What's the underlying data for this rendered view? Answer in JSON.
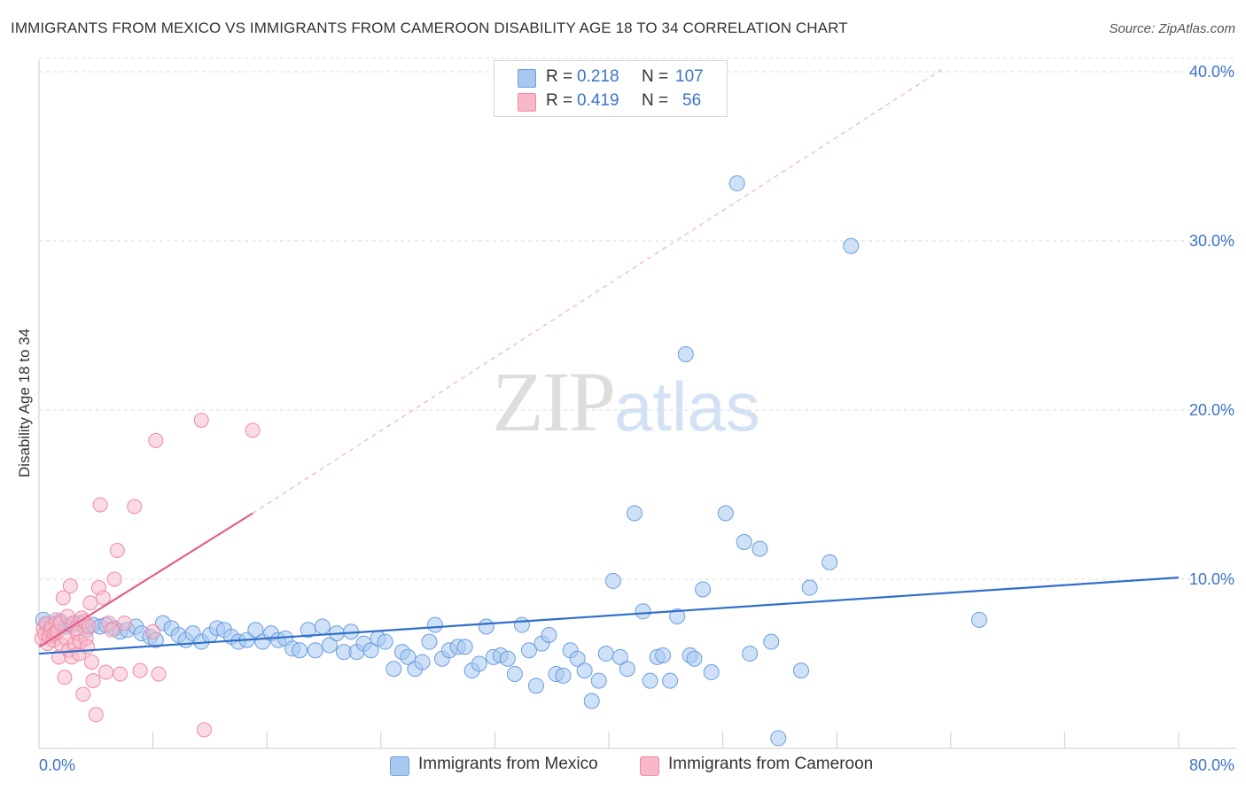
{
  "header": {
    "title": "IMMIGRANTS FROM MEXICO VS IMMIGRANTS FROM CAMEROON DISABILITY AGE 18 TO 34 CORRELATION CHART",
    "source": "Source: ZipAtlas.com"
  },
  "watermark": {
    "zip": "ZIP",
    "atlas": "atlas"
  },
  "legend": {
    "rows": [
      {
        "r_label": "R =",
        "r_value": "0.218",
        "n_label": "N =",
        "n_value": "107",
        "color": "#a8c8f0"
      },
      {
        "r_label": "R =",
        "r_value": "0.419",
        "n_label": "N =",
        "n_value": "56",
        "color": "#f8b8c8"
      }
    ]
  },
  "colors": {
    "mexico_fill": "#a8c8f0",
    "mexico_stroke": "#6a9ee0",
    "mexico_line": "#2f6fcc",
    "cameroon_fill": "#f8b8c8",
    "cameroon_stroke": "#ee8aa6",
    "cameroon_line": "#e0608a",
    "tick_label": "#3b73c8",
    "grid": "#dddddd"
  },
  "chart_data": {
    "type": "scatter",
    "title": "IMMIGRANTS FROM MEXICO VS IMMIGRANTS FROM CAMEROON DISABILITY AGE 18 TO 34 CORRELATION CHART",
    "xlabel": "",
    "ylabel": "Disability Age 18 to 34",
    "xlim": [
      0,
      80
    ],
    "ylim": [
      0,
      42
    ],
    "x_tick_labels": [
      "0.0%",
      "80.0%"
    ],
    "y_ticks": [
      10,
      20,
      30,
      40
    ],
    "y_tick_labels": [
      "10.0%",
      "20.0%",
      "30.0%",
      "40.0%"
    ],
    "grid": true,
    "legend_position": "top-center",
    "series": [
      {
        "name": "Immigrants from Mexico",
        "trend": {
          "x": [
            0,
            80
          ],
          "y": [
            5.6,
            10.1
          ]
        },
        "points": [
          [
            0.3,
            7.6
          ],
          [
            0.6,
            7.3
          ],
          [
            0.9,
            7.0
          ],
          [
            1.2,
            7.4
          ],
          [
            1.5,
            7.5
          ],
          [
            1.9,
            7.2
          ],
          [
            2.3,
            7.3
          ],
          [
            2.8,
            7.4
          ],
          [
            3.3,
            7.0
          ],
          [
            3.8,
            7.3
          ],
          [
            4.3,
            7.2
          ],
          [
            4.7,
            7.3
          ],
          [
            5.3,
            7.1
          ],
          [
            5.7,
            6.9
          ],
          [
            6.2,
            7.0
          ],
          [
            6.8,
            7.2
          ],
          [
            7.2,
            6.8
          ],
          [
            7.8,
            6.6
          ],
          [
            8.2,
            6.4
          ],
          [
            8.7,
            7.4
          ],
          [
            9.3,
            7.1
          ],
          [
            9.8,
            6.7
          ],
          [
            10.3,
            6.4
          ],
          [
            10.8,
            6.8
          ],
          [
            11.4,
            6.3
          ],
          [
            12.0,
            6.7
          ],
          [
            12.5,
            7.1
          ],
          [
            13.0,
            7.0
          ],
          [
            13.5,
            6.6
          ],
          [
            14.0,
            6.3
          ],
          [
            14.6,
            6.4
          ],
          [
            15.2,
            7.0
          ],
          [
            15.7,
            6.3
          ],
          [
            16.3,
            6.8
          ],
          [
            16.8,
            6.4
          ],
          [
            17.3,
            6.5
          ],
          [
            17.8,
            5.9
          ],
          [
            18.3,
            5.8
          ],
          [
            18.9,
            7.0
          ],
          [
            19.4,
            5.8
          ],
          [
            19.9,
            7.2
          ],
          [
            20.4,
            6.1
          ],
          [
            20.9,
            6.8
          ],
          [
            21.4,
            5.7
          ],
          [
            21.9,
            6.9
          ],
          [
            22.3,
            5.7
          ],
          [
            22.8,
            6.2
          ],
          [
            23.3,
            5.8
          ],
          [
            23.8,
            6.5
          ],
          [
            24.3,
            6.3
          ],
          [
            24.9,
            4.7
          ],
          [
            25.5,
            5.7
          ],
          [
            25.9,
            5.4
          ],
          [
            26.4,
            4.7
          ],
          [
            26.9,
            5.1
          ],
          [
            27.4,
            6.3
          ],
          [
            27.8,
            7.3
          ],
          [
            28.3,
            5.3
          ],
          [
            28.8,
            5.8
          ],
          [
            29.4,
            6.0
          ],
          [
            29.9,
            6.0
          ],
          [
            30.4,
            4.6
          ],
          [
            30.9,
            5.0
          ],
          [
            31.4,
            7.2
          ],
          [
            31.9,
            5.4
          ],
          [
            32.4,
            5.5
          ],
          [
            32.9,
            5.3
          ],
          [
            33.4,
            4.4
          ],
          [
            33.9,
            7.3
          ],
          [
            34.4,
            5.8
          ],
          [
            34.9,
            3.7
          ],
          [
            35.3,
            6.2
          ],
          [
            35.8,
            6.7
          ],
          [
            36.3,
            4.4
          ],
          [
            36.8,
            4.3
          ],
          [
            37.3,
            5.8
          ],
          [
            37.8,
            5.3
          ],
          [
            38.3,
            4.6
          ],
          [
            38.8,
            2.8
          ],
          [
            39.3,
            4.0
          ],
          [
            39.8,
            5.6
          ],
          [
            40.3,
            9.9
          ],
          [
            40.8,
            5.4
          ],
          [
            41.3,
            4.7
          ],
          [
            41.8,
            13.9
          ],
          [
            42.4,
            8.1
          ],
          [
            42.9,
            4.0
          ],
          [
            43.4,
            5.4
          ],
          [
            43.8,
            5.5
          ],
          [
            44.3,
            4.0
          ],
          [
            44.8,
            7.8
          ],
          [
            45.4,
            23.3
          ],
          [
            45.7,
            5.5
          ],
          [
            46.0,
            5.3
          ],
          [
            46.6,
            9.4
          ],
          [
            47.2,
            4.5
          ],
          [
            48.2,
            13.9
          ],
          [
            49.0,
            33.4
          ],
          [
            49.5,
            12.2
          ],
          [
            49.9,
            5.6
          ],
          [
            50.6,
            11.8
          ],
          [
            51.4,
            6.3
          ],
          [
            51.9,
            0.6
          ],
          [
            53.5,
            4.6
          ],
          [
            54.1,
            9.5
          ],
          [
            55.5,
            11.0
          ],
          [
            57.0,
            29.7
          ],
          [
            66.0,
            7.6
          ]
        ]
      },
      {
        "name": "Immigrants from Cameroon",
        "trend": {
          "x": [
            0,
            15
          ],
          "y": [
            6.0,
            13.9
          ]
        },
        "trend_extrapolated": {
          "x": [
            15,
            63.5
          ],
          "y": [
            13.9,
            40.2
          ]
        },
        "points": [
          [
            0.2,
            6.5
          ],
          [
            0.3,
            7.1
          ],
          [
            0.4,
            6.8
          ],
          [
            0.5,
            7.4
          ],
          [
            0.6,
            6.2
          ],
          [
            0.7,
            6.6
          ],
          [
            0.8,
            7.0
          ],
          [
            0.9,
            7.2
          ],
          [
            1.0,
            6.4
          ],
          [
            1.1,
            6.8
          ],
          [
            1.2,
            7.6
          ],
          [
            1.3,
            6.9
          ],
          [
            1.4,
            5.4
          ],
          [
            1.5,
            7.4
          ],
          [
            1.6,
            6.1
          ],
          [
            1.7,
            8.9
          ],
          [
            1.8,
            4.2
          ],
          [
            1.9,
            6.5
          ],
          [
            2.0,
            7.8
          ],
          [
            2.1,
            5.8
          ],
          [
            2.2,
            9.6
          ],
          [
            2.3,
            5.4
          ],
          [
            2.4,
            7.4
          ],
          [
            2.5,
            6.2
          ],
          [
            2.6,
            7.1
          ],
          [
            2.7,
            6.8
          ],
          [
            2.8,
            5.6
          ],
          [
            2.9,
            6.3
          ],
          [
            3.0,
            7.7
          ],
          [
            3.1,
            3.2
          ],
          [
            3.2,
            7.5
          ],
          [
            3.3,
            6.5
          ],
          [
            3.4,
            6.0
          ],
          [
            3.5,
            7.2
          ],
          [
            3.6,
            8.6
          ],
          [
            3.7,
            5.1
          ],
          [
            3.8,
            4.0
          ],
          [
            4.0,
            2.0
          ],
          [
            4.2,
            9.5
          ],
          [
            4.3,
            14.4
          ],
          [
            4.5,
            8.9
          ],
          [
            4.7,
            4.5
          ],
          [
            4.9,
            7.4
          ],
          [
            5.1,
            7.0
          ],
          [
            5.3,
            10.0
          ],
          [
            5.5,
            11.7
          ],
          [
            5.7,
            4.4
          ],
          [
            6.0,
            7.4
          ],
          [
            6.7,
            14.3
          ],
          [
            7.1,
            4.6
          ],
          [
            8.0,
            6.9
          ],
          [
            8.2,
            18.2
          ],
          [
            8.4,
            4.4
          ],
          [
            11.4,
            19.4
          ],
          [
            11.6,
            1.1
          ],
          [
            15.0,
            18.8
          ]
        ]
      }
    ]
  },
  "bottom_legend": {
    "items": [
      {
        "label": "Immigrants from Mexico",
        "color": "#a8c8f0"
      },
      {
        "label": "Immigrants from Cameroon",
        "color": "#f8b8c8"
      }
    ]
  }
}
